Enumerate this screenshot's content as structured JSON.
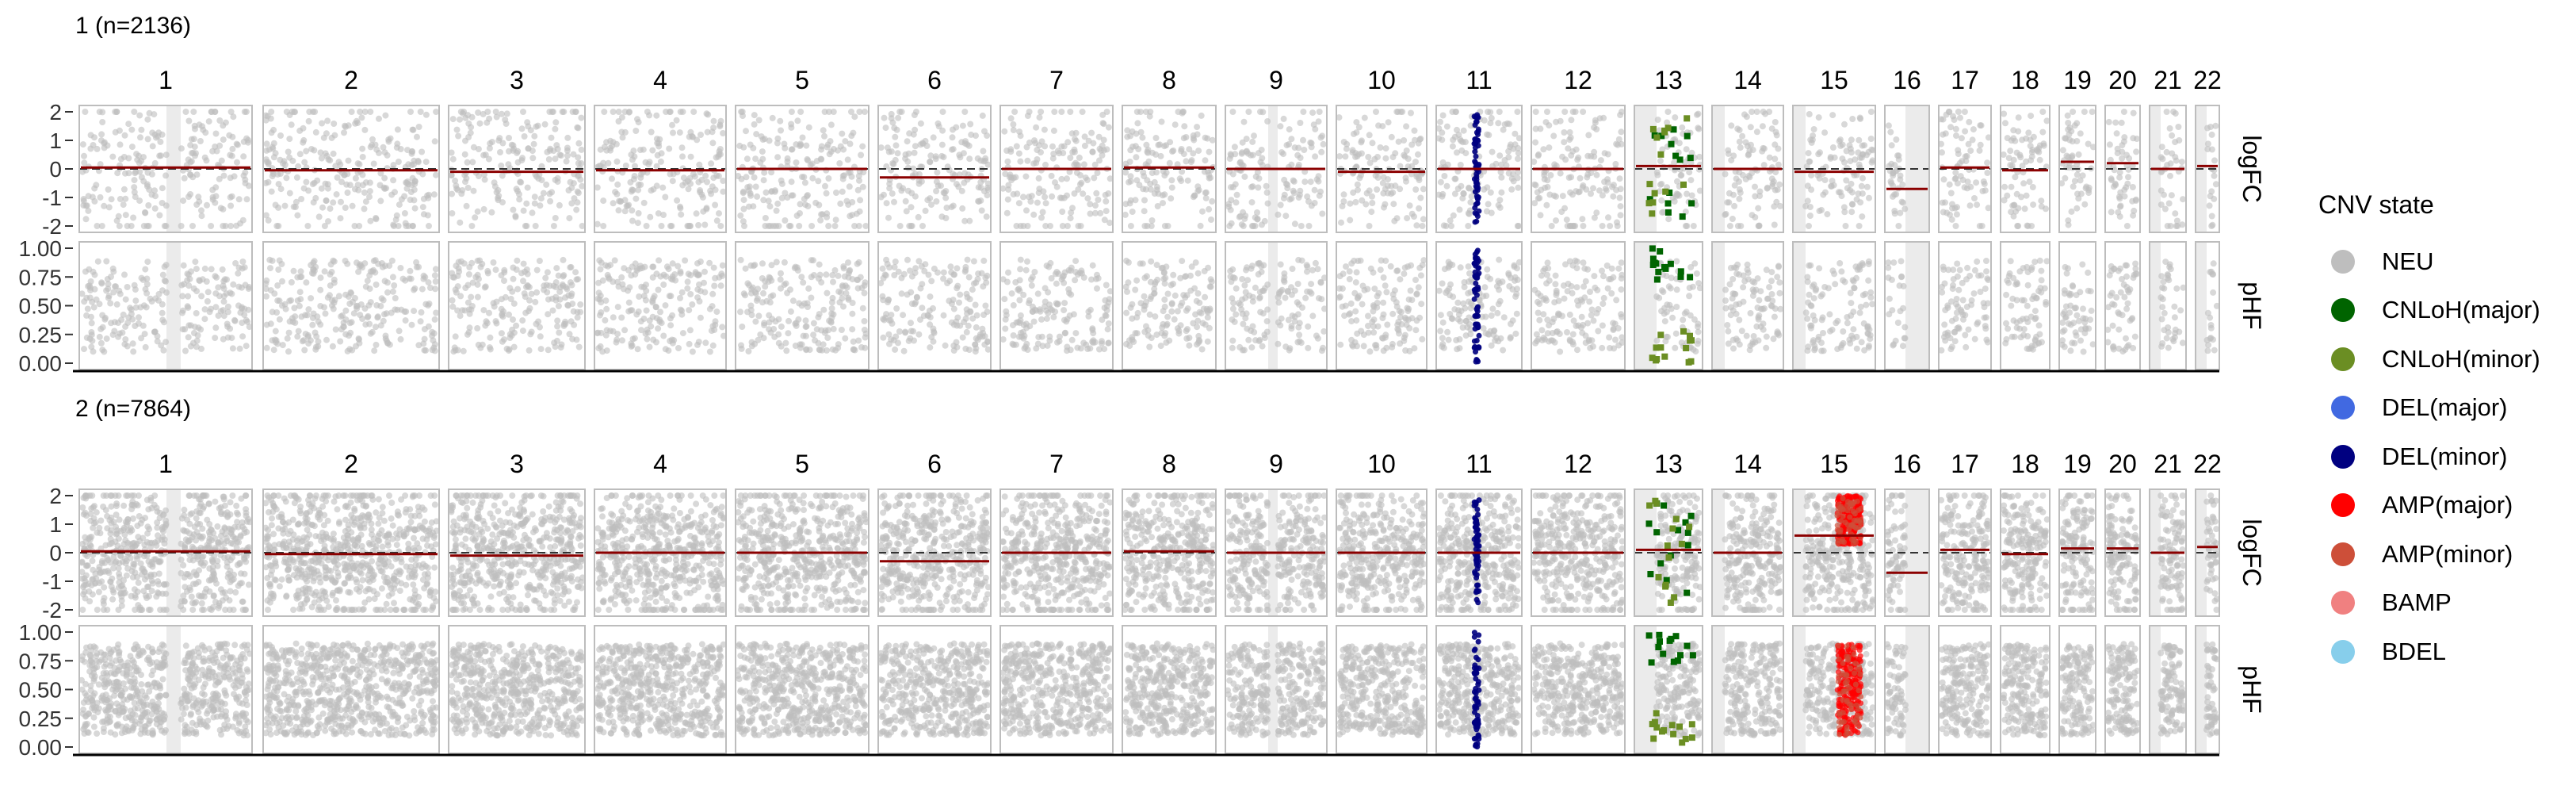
{
  "chart_data": {
    "type": "scatter",
    "description_kind": "faceted copy-number variation scatter plot by chromosome",
    "chromosomes": [
      "1",
      "2",
      "3",
      "4",
      "5",
      "6",
      "7",
      "8",
      "9",
      "10",
      "11",
      "12",
      "13",
      "14",
      "15",
      "16",
      "17",
      "18",
      "19",
      "20",
      "21",
      "22"
    ],
    "row_labels": [
      "logFC",
      "pHF"
    ],
    "y_axes": {
      "logFC": {
        "ticks": [
          "2",
          "1",
          "0",
          "-1",
          "-2"
        ],
        "ylim": [
          -2,
          2
        ]
      },
      "pHF": {
        "ticks": [
          "1.00",
          "0.75",
          "0.50",
          "0.25",
          "0.00"
        ],
        "ylim": [
          0,
          1
        ]
      }
    },
    "panels": [
      {
        "title": "1 (n=2136)",
        "segments_logFC": [
          {
            "chr": "1",
            "value": 0.05
          },
          {
            "chr": "2",
            "value": -0.05
          },
          {
            "chr": "3",
            "value": -0.1
          },
          {
            "chr": "4",
            "value": -0.05
          },
          {
            "chr": "5",
            "value": 0.0
          },
          {
            "chr": "6",
            "value": -0.3
          },
          {
            "chr": "7",
            "value": 0.0
          },
          {
            "chr": "8",
            "value": 0.05
          },
          {
            "chr": "9",
            "value": 0.0
          },
          {
            "chr": "10",
            "value": -0.1
          },
          {
            "chr": "11",
            "value": 0.0
          },
          {
            "chr": "12",
            "value": 0.0
          },
          {
            "chr": "13",
            "value": 0.1
          },
          {
            "chr": "14",
            "value": 0.0
          },
          {
            "chr": "15",
            "value": -0.1
          },
          {
            "chr": "16",
            "value": -0.7
          },
          {
            "chr": "17",
            "value": 0.05
          },
          {
            "chr": "18",
            "value": -0.05
          },
          {
            "chr": "19",
            "value": 0.25
          },
          {
            "chr": "20",
            "value": 0.2
          },
          {
            "chr": "21",
            "value": 0.0
          },
          {
            "chr": "22",
            "value": 0.1
          }
        ],
        "highlights": [
          {
            "chr": "11",
            "state": "DEL(minor)"
          },
          {
            "chr": "13",
            "state": "CNLoH(major)"
          },
          {
            "chr": "13",
            "state": "CNLoH(minor)"
          }
        ]
      },
      {
        "title": "2 (n=7864)",
        "segments_logFC": [
          {
            "chr": "1",
            "value": 0.05
          },
          {
            "chr": "2",
            "value": -0.05
          },
          {
            "chr": "3",
            "value": -0.1
          },
          {
            "chr": "4",
            "value": 0.0
          },
          {
            "chr": "5",
            "value": 0.0
          },
          {
            "chr": "6",
            "value": -0.3
          },
          {
            "chr": "7",
            "value": 0.0
          },
          {
            "chr": "8",
            "value": 0.05
          },
          {
            "chr": "9",
            "value": 0.0
          },
          {
            "chr": "10",
            "value": 0.0
          },
          {
            "chr": "11",
            "value": 0.0
          },
          {
            "chr": "12",
            "value": 0.0
          },
          {
            "chr": "13",
            "value": 0.1
          },
          {
            "chr": "14",
            "value": 0.0
          },
          {
            "chr": "15",
            "value": 0.6
          },
          {
            "chr": "16",
            "value": -0.7
          },
          {
            "chr": "17",
            "value": 0.1
          },
          {
            "chr": "18",
            "value": -0.05
          },
          {
            "chr": "19",
            "value": 0.15
          },
          {
            "chr": "20",
            "value": 0.15
          },
          {
            "chr": "21",
            "value": 0.0
          },
          {
            "chr": "22",
            "value": 0.2
          }
        ],
        "highlights": [
          {
            "chr": "11",
            "state": "DEL(minor)"
          },
          {
            "chr": "13",
            "state": "CNLoH(major)"
          },
          {
            "chr": "13",
            "state": "CNLoH(minor)"
          },
          {
            "chr": "15",
            "state": "AMP(major)"
          },
          {
            "chr": "15",
            "state": "AMP(minor)"
          }
        ]
      }
    ],
    "legend": {
      "title": "CNV state",
      "placement": "right",
      "items": [
        {
          "label": "NEU",
          "color": "#bebebe"
        },
        {
          "label": "CNLoH(major)",
          "color": "#006400"
        },
        {
          "label": "CNLoH(minor)",
          "color": "#6b8e23"
        },
        {
          "label": "DEL(major)",
          "color": "#4169e1"
        },
        {
          "label": "DEL(minor)",
          "color": "#000080"
        },
        {
          "label": "AMP(major)",
          "color": "#ff0000"
        },
        {
          "label": "AMP(minor)",
          "color": "#cd4f39"
        },
        {
          "label": "BAMP",
          "color": "#f08080"
        },
        {
          "label": "BDEL",
          "color": "#87ceeb"
        }
      ]
    },
    "colors": {
      "segment": "#8b0000",
      "baseline": "#333333",
      "point": "#bebebe",
      "facet_border": "#bdbdbd",
      "centromere": "#ebebeb"
    }
  }
}
